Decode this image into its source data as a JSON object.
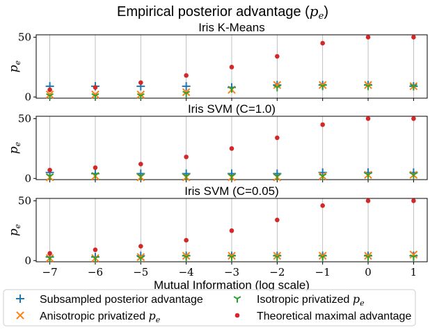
{
  "figure": {
    "title": "Empirical posterior advantage (",
    "title_symbol": "p",
    "title_sub": "e",
    "title_close": ")"
  },
  "colors": {
    "subsampled": "#1f77b4",
    "anisotropic": "#ff7f0e",
    "isotropic": "#2ca02c",
    "theoretical": "#d62728",
    "grid": "#b0b0b0",
    "axes": "#000000"
  },
  "legend": {
    "items": [
      {
        "key": "subsampled",
        "marker": "plus",
        "label": "Subsampled posterior advantage",
        "sym": ""
      },
      {
        "key": "isotropic",
        "marker": "tri",
        "label": "Isotropic privatized ",
        "sym": "p"
      },
      {
        "key": "anisotropic",
        "marker": "x",
        "label": "Anisotropic privatized ",
        "sym": "p"
      },
      {
        "key": "theoretical",
        "marker": "dot",
        "label": "Theoretical maximal advantage",
        "sym": ""
      }
    ]
  },
  "chart_data": [
    {
      "type": "scatter",
      "title": "Iris K-Means",
      "ylabel_symbol": "p",
      "ylabel_sub": "e",
      "x": [
        -7,
        -6,
        -5,
        -4,
        -3,
        -2,
        -1,
        0,
        1
      ],
      "xlim": [
        -7.3,
        1.3
      ],
      "ylim": [
        -1,
        52
      ],
      "yticks": [
        0,
        50
      ],
      "grid": "x",
      "series": [
        {
          "key": "subsampled",
          "name": "Subsampled posterior advantage",
          "marker": "plus",
          "values": [
            9,
            9,
            9,
            9,
            8,
            10,
            10,
            10,
            9
          ]
        },
        {
          "key": "anisotropic",
          "name": "Anisotropic privatized",
          "marker": "x",
          "values": [
            2,
            2,
            2,
            4,
            6,
            10,
            10,
            10,
            9
          ]
        },
        {
          "key": "isotropic",
          "name": "Isotropic privatized",
          "marker": "tri",
          "values": [
            1,
            1,
            1,
            3,
            7,
            8,
            9,
            9,
            9
          ]
        },
        {
          "key": "theoretical",
          "name": "Theoretical maximal advantage",
          "marker": "dot",
          "values": [
            6,
            8,
            12,
            18,
            25,
            34,
            45,
            50,
            50
          ]
        }
      ]
    },
    {
      "type": "scatter",
      "title": "Iris SVM (C=1.0)",
      "ylabel_symbol": "p",
      "ylabel_sub": "e",
      "x": [
        -7,
        -6,
        -5,
        -4,
        -3,
        -2,
        -1,
        0,
        1
      ],
      "xlim": [
        -7.3,
        1.3
      ],
      "ylim": [
        -1,
        52
      ],
      "yticks": [
        0,
        50
      ],
      "grid": "x",
      "series": [
        {
          "key": "subsampled",
          "name": "Subsampled posterior advantage",
          "marker": "plus",
          "values": [
            5,
            4,
            4,
            4,
            4,
            4,
            5,
            5,
            5
          ]
        },
        {
          "key": "anisotropic",
          "name": "Anisotropic privatized",
          "marker": "x",
          "values": [
            1,
            2,
            1,
            1,
            1,
            1,
            2,
            3,
            3
          ]
        },
        {
          "key": "isotropic",
          "name": "Isotropic privatized",
          "marker": "tri",
          "values": [
            2,
            3,
            2,
            2,
            2,
            2,
            2,
            3,
            3
          ]
        },
        {
          "key": "theoretical",
          "name": "Theoretical maximal advantage",
          "marker": "dot",
          "values": [
            7,
            9,
            12,
            18,
            25,
            34,
            45,
            50,
            50
          ]
        }
      ]
    },
    {
      "type": "scatter",
      "title": "Iris SVM (C=0.05)",
      "ylabel_symbol": "p",
      "ylabel_sub": "e",
      "xlabel": "Mutual Information (log scale)",
      "xtick_labels": [
        "−7",
        "−6",
        "−5",
        "−4",
        "−3",
        "−2",
        "−1",
        "0",
        "1"
      ],
      "x": [
        -7,
        -6,
        -5,
        -4,
        -3,
        -2,
        -1,
        0,
        1
      ],
      "xlim": [
        -7.3,
        1.3
      ],
      "ylim": [
        -1,
        52
      ],
      "yticks": [
        0,
        50
      ],
      "grid": "x",
      "series": [
        {
          "key": "subsampled",
          "name": "Subsampled posterior advantage",
          "marker": "plus",
          "values": [
            3,
            3,
            4,
            4,
            4,
            4,
            4,
            4,
            4
          ]
        },
        {
          "key": "anisotropic",
          "name": "Anisotropic privatized",
          "marker": "x",
          "values": [
            2,
            2,
            3,
            4,
            4,
            4,
            4,
            4,
            5
          ]
        },
        {
          "key": "isotropic",
          "name": "Isotropic privatized",
          "marker": "tri",
          "values": [
            2,
            2,
            2,
            3,
            3,
            3,
            3,
            3,
            3
          ]
        },
        {
          "key": "theoretical",
          "name": "Theoretical maximal advantage",
          "marker": "dot",
          "values": [
            6,
            9,
            12,
            17,
            25,
            34,
            46,
            50,
            50
          ]
        }
      ]
    }
  ]
}
